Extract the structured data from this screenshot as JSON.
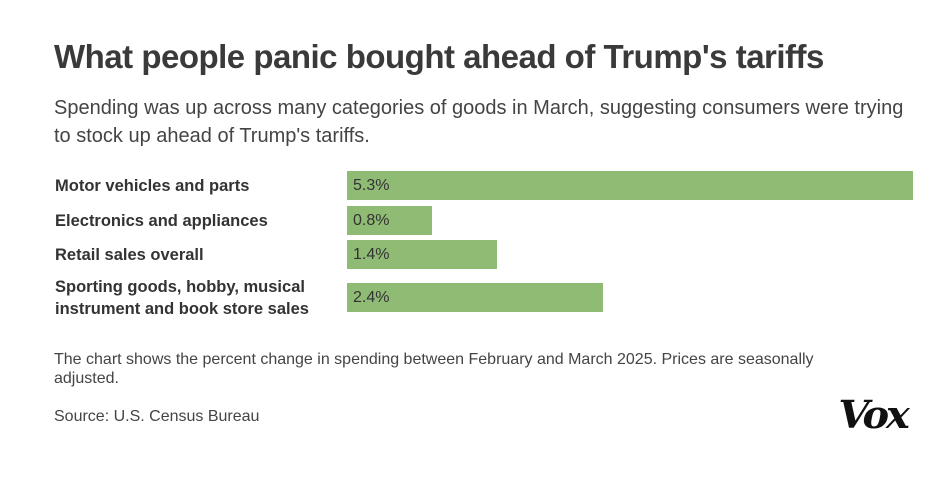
{
  "header": {
    "title": "What people panic bought ahead of Trump's tariffs",
    "subtitle": "Spending was up across many categories of goods in March, suggesting consumers were trying to stock up ahead of Trump's tariffs."
  },
  "chart_data": {
    "type": "bar",
    "orientation": "horizontal",
    "categories": [
      "Motor vehicles and parts",
      "Electronics and appliances",
      "Retail sales overall",
      "Sporting goods, hobby, musical instrument and book store sales"
    ],
    "values": [
      5.3,
      0.8,
      1.4,
      2.4
    ],
    "value_labels": [
      "5.3%",
      "0.8%",
      "1.4%",
      "2.4%"
    ],
    "bar_color": "#8fbb74",
    "grid": false,
    "legend": "none"
  },
  "footer": {
    "note": "The chart shows the percent change in spending between February and March 2025. Prices are seasonally adjusted.",
    "source": "Source: U.S. Census Bureau",
    "logo": "Vox"
  }
}
